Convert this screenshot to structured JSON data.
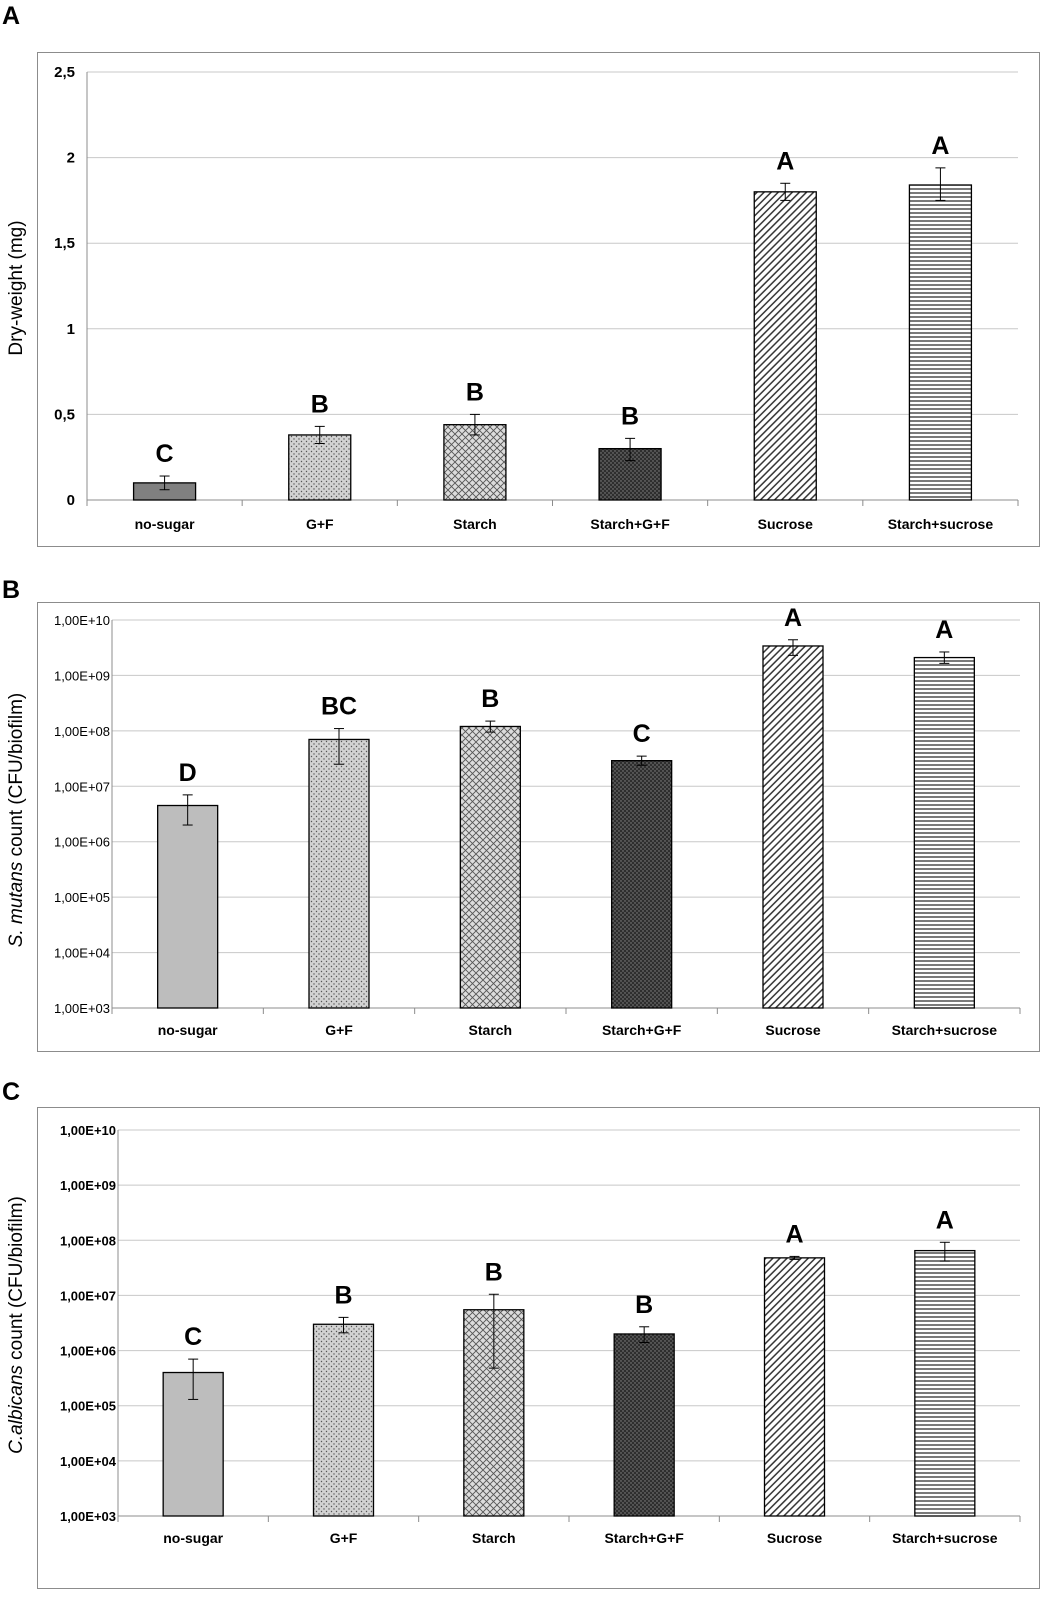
{
  "panels": {
    "a": {
      "letter": "A"
    },
    "b": {
      "letter": "B"
    },
    "c": {
      "letter": "C"
    }
  },
  "chart_data": [
    {
      "id": "a",
      "type": "bar",
      "scale": "linear",
      "ylabel": "Dry-weight (mg)",
      "ylim": [
        0,
        2.5
      ],
      "yticks": [
        0,
        0.5,
        1,
        1.5,
        2,
        2.5
      ],
      "ytick_labels": [
        "0",
        "0,5",
        "1",
        "1,5",
        "2",
        "2,5"
      ],
      "categories": [
        "no-sugar",
        "G+F",
        "Starch",
        "Starch+G+F",
        "Sucrose",
        "Starch+sucrose"
      ],
      "values": [
        0.1,
        0.38,
        0.44,
        0.3,
        1.8,
        1.84
      ],
      "error_low": [
        0.06,
        0.33,
        0.38,
        0.23,
        1.75,
        1.75
      ],
      "error_high": [
        0.14,
        0.43,
        0.5,
        0.36,
        1.85,
        1.94
      ],
      "significance": [
        "C",
        "B",
        "B",
        "B",
        "A",
        "A"
      ],
      "grid": true
    },
    {
      "id": "b",
      "type": "bar",
      "scale": "log",
      "ylabel_italic": "S. mutans",
      "ylabel": " count (CFU/biofilm)",
      "ylim": [
        1000,
        10000000000
      ],
      "ytick_labels": [
        "1,00E+03",
        "1,00E+04",
        "1,00E+05",
        "1,00E+06",
        "1,00E+07",
        "1,00E+08",
        "1,00E+09",
        "1,00E+10"
      ],
      "categories": [
        "no-sugar",
        "G+F",
        "Starch",
        "Starch+G+F",
        "Sucrose",
        "Starch+sucrose"
      ],
      "values": [
        4500000,
        70000000,
        120000000,
        29000000,
        3400000000,
        2100000000
      ],
      "error_low": [
        2000000,
        25000000,
        95000000,
        24000000,
        2300000000,
        1650000000
      ],
      "error_high": [
        7000000,
        110000000,
        150000000,
        35000000,
        4400000000,
        2650000000
      ],
      "significance": [
        "D",
        "BC",
        "B",
        "C",
        "A",
        "A"
      ],
      "grid": true
    },
    {
      "id": "c",
      "type": "bar",
      "scale": "log",
      "ylabel_italic": "C.albicans",
      "ylabel": " count (CFU/biofilm)",
      "ylim": [
        1000,
        10000000000
      ],
      "ytick_labels": [
        "1,00E+03",
        "1,00E+04",
        "1,00E+05",
        "1,00E+06",
        "1,00E+07",
        "1,00E+08",
        "1,00E+09",
        "1,00E+10"
      ],
      "categories": [
        "no-sugar",
        "G+F",
        "Starch",
        "Starch+G+F",
        "Sucrose",
        "Starch+sucrose"
      ],
      "values": [
        400000,
        3000000,
        5500000,
        2000000,
        48000000,
        65000000
      ],
      "error_low": [
        130000,
        2100000,
        480000,
        1400000,
        45000000,
        42000000
      ],
      "error_high": [
        700000,
        4000000,
        10500000,
        2700000,
        51000000,
        92000000
      ],
      "significance": [
        "C",
        "B",
        "B",
        "B",
        "A",
        "A"
      ],
      "grid": true
    }
  ],
  "patterns": [
    "solid",
    "dots",
    "crosshatch",
    "dense-dark",
    "diagonal",
    "horizontal"
  ]
}
